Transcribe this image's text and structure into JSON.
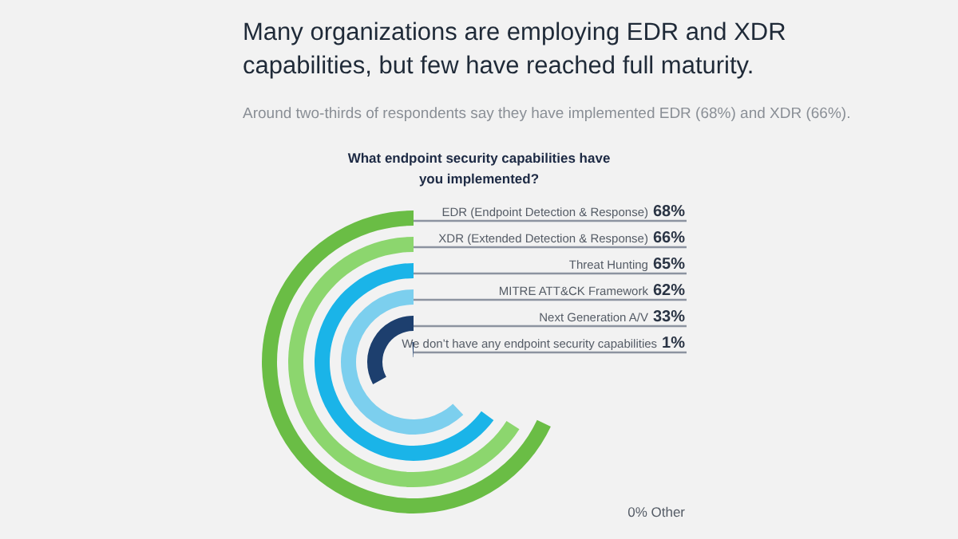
{
  "chart_data": {
    "type": "other",
    "title": "Many organizations are employing EDR and XDR capabilities, but few have reached full maturity.",
    "subtitle": "Around two-thirds of respondents say they have implemented EDR (68%) and XDR (66%).",
    "categories": [
      "EDR (Endpoint Detection & Response)",
      "XDR (Extended Detection & Response)",
      "Threat Hunting",
      "MITRE ATT&CK Framework",
      "Next Generation A/V",
      "We don’t have any endpoint security capabilities"
    ],
    "values": [
      68,
      66,
      65,
      62,
      33,
      1
    ],
    "value_labels": [
      "68%",
      "66%",
      "65%",
      "62%",
      "33%",
      "1%"
    ],
    "colors": [
      "#6abd45",
      "#8cd66e",
      "#1ab4e8",
      "#7ccfee",
      "#1d3f6e",
      "#1d3f6e"
    ],
    "annotations": [
      "What endpoint security capabilities have you implemented?",
      "0% Other"
    ]
  }
}
